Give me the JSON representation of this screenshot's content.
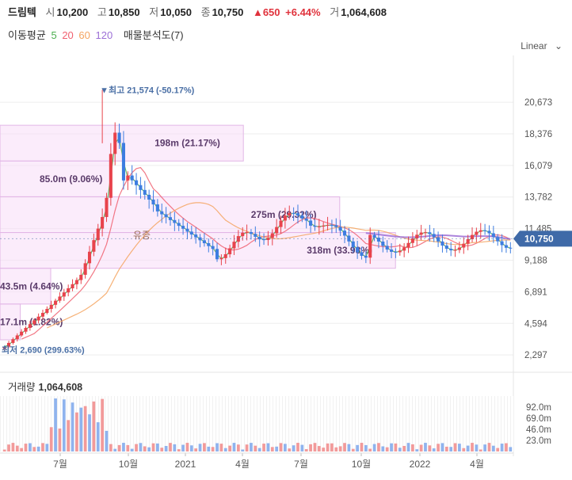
{
  "header": {
    "name": "드림텍",
    "open_label": "시",
    "open": "10,200",
    "high_label": "고",
    "high": "10,850",
    "low_label": "저",
    "low": "10,050",
    "close_label": "종",
    "close": "10,750",
    "change": "▲650",
    "change_pct": "+6.44%",
    "volume_label": "거",
    "volume": "1,064,608"
  },
  "indicators": {
    "ma_label": "이동평균",
    "ma": [
      {
        "period": "5",
        "color": "#4caf50"
      },
      {
        "period": "20",
        "color": "#f06070"
      },
      {
        "period": "60",
        "color": "#f4a460"
      },
      {
        "period": "120",
        "color": "#9c6fd6"
      }
    ],
    "profile_label": "매물분석도(7)"
  },
  "scale_mode": "Linear",
  "volume_title": "거래량",
  "volume_value": "1,064,608",
  "chart_data": {
    "type": "candlestick",
    "y_ticks": [
      20673,
      18376,
      16079,
      13782,
      11485,
      9188,
      6891,
      4594,
      2297
    ],
    "y_tick_labels": [
      "20,673",
      "18,376",
      "16,079",
      "13,782",
      "11,485",
      "9,188",
      "6,891",
      "4,594",
      "2,297"
    ],
    "ylim": [
      1500,
      23500
    ],
    "x_ticks": [
      "7월",
      "10월",
      "2021",
      "4월",
      "7월",
      "10월",
      "2022",
      "4월"
    ],
    "current_price": 10750,
    "current_price_label": "10,750",
    "max_marker": {
      "label": "최고",
      "value": "21,574 (-50.17%)",
      "price": 21574
    },
    "min_marker": {
      "label": "최저",
      "value": "2,690 (299.63%)",
      "price": 2690
    },
    "annotation": "유증",
    "volume_profile": [
      {
        "label": "198m (21.17%)",
        "low": 16400,
        "high": 19000,
        "frac": 0.48
      },
      {
        "label": "85.0m (9.06%)",
        "low": 13800,
        "high": 16400,
        "frac": 0.22
      },
      {
        "label": "275m (29.32%)",
        "low": 11200,
        "high": 13800,
        "frac": 0.67
      },
      {
        "label": "318m (33.98%)",
        "low": 8600,
        "high": 11200,
        "frac": 0.78
      },
      {
        "label": "43.5m (4.64%)",
        "low": 6000,
        "high": 8600,
        "frac": 0.1
      },
      {
        "label": "17.1m (1.82%)",
        "low": 3400,
        "high": 6000,
        "frac": 0.04
      }
    ],
    "volume_ticks": [
      "92.0m",
      "69.0m",
      "46.0m",
      "23.0m"
    ],
    "volume_tick_values": [
      92,
      69,
      46,
      23
    ]
  }
}
